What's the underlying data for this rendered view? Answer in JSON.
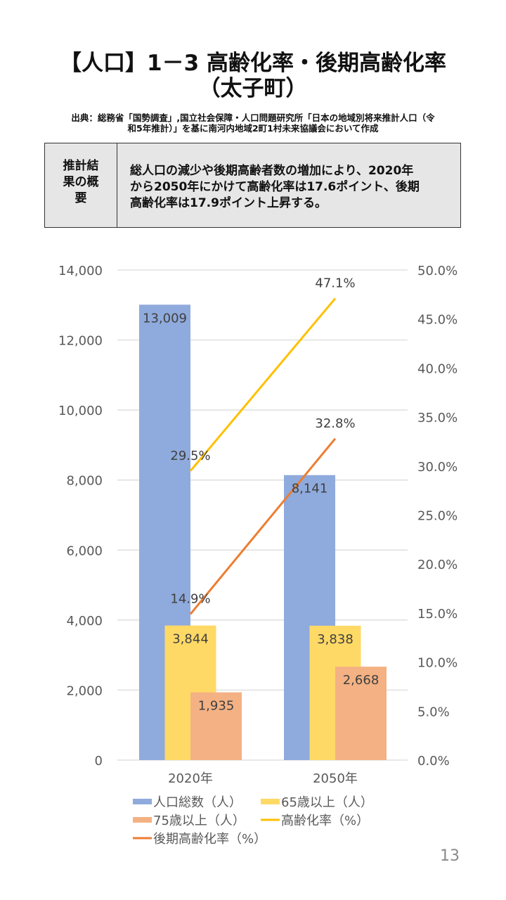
{
  "header": {
    "title_line1": "【人口】1－3 高齢化率・後期高齢化率",
    "title_line2": "（太子町）",
    "source_line1": "出典：総務省「国勢調査」,国立社会保障・人口問題研究所「日本の地域別将来推計人口（令",
    "source_line2": "和5年推計）」を基に南河内地域2町1村未来協議会において作成"
  },
  "summary": {
    "label_lines": [
      "推計結",
      "果の概",
      "要"
    ],
    "text_lines": [
      "総人口の減少や後期高齢者数の増加により、2020年",
      "から2050年にかけて高齢化率は17.6ポイント、後期",
      "高齢化率は17.9ポイント上昇する。"
    ]
  },
  "colors": {
    "total": "#8FAADC",
    "age65": "#FFD966",
    "age75": "#F4B183",
    "aging_rate": "#FFC000",
    "late_aging_rate": "#ED7D31",
    "grid": "#d9d9d9",
    "axis_text": "#595959",
    "label_text": "#404040"
  },
  "chart_data": {
    "type": "bar",
    "title": "",
    "categories": [
      "2020年",
      "2050年"
    ],
    "series": [
      {
        "name": "人口総数（人）",
        "type": "bar",
        "axis": "left",
        "values": [
          13009,
          8141
        ],
        "labels": [
          "13,009",
          "8,141"
        ]
      },
      {
        "name": "65歳以上（人）",
        "type": "bar",
        "axis": "left",
        "values": [
          3844,
          3838
        ],
        "labels": [
          "3,844",
          "3,838"
        ]
      },
      {
        "name": "75歳以上（人）",
        "type": "bar",
        "axis": "left",
        "values": [
          1935,
          2668
        ],
        "labels": [
          "1,935",
          "2,668"
        ]
      },
      {
        "name": "高齢化率（%）",
        "type": "line",
        "axis": "right",
        "values": [
          29.5,
          47.1
        ],
        "labels": [
          "29.5%",
          "47.1%"
        ]
      },
      {
        "name": "後期高齢化率（%）",
        "type": "line",
        "axis": "right",
        "values": [
          14.9,
          32.8
        ],
        "labels": [
          "14.9%",
          "32.8%"
        ]
      }
    ],
    "left_axis": {
      "ylim": [
        0,
        14000
      ],
      "ticks": [
        "0",
        "2,000",
        "4,000",
        "6,000",
        "8,000",
        "10,000",
        "12,000",
        "14,000"
      ]
    },
    "right_axis": {
      "ylim": [
        0,
        50
      ],
      "ticks": [
        "0.0%",
        "5.0%",
        "10.0%",
        "15.0%",
        "20.0%",
        "25.0%",
        "30.0%",
        "35.0%",
        "40.0%",
        "45.0%",
        "50.0%"
      ]
    },
    "grid": true,
    "legend_position": "bottom",
    "legend": [
      "人口総数（人）",
      "65歳以上（人）",
      "75歳以上（人）",
      "高齢化率（%）",
      "後期高齢化率（%）"
    ]
  },
  "footer": {
    "page_number": "13"
  }
}
